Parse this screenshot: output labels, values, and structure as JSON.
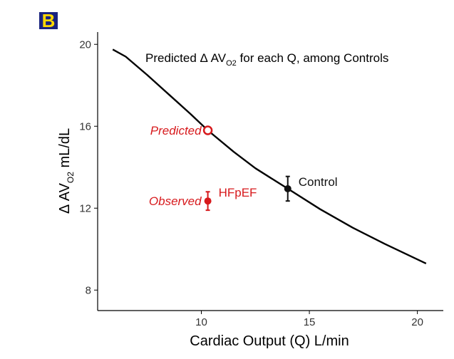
{
  "panel_label": "B",
  "chart_data": {
    "type": "line",
    "title": "Predicted Δ AV for each Q, among Controls",
    "title_parts": {
      "prefix": "Predicted Δ AV",
      "sub": "O2",
      "suffix": " for each Q, among Controls"
    },
    "xlabel": "Cardiac Output (Q)  L/min",
    "ylabel_parts": {
      "prefix": "Δ AV",
      "sub": "O2",
      "suffix": "  mL/dL"
    },
    "xlim": [
      5.2,
      21.2
    ],
    "ylim": [
      7.0,
      20.6
    ],
    "xticks": [
      10,
      15,
      20
    ],
    "yticks": [
      8,
      12,
      16,
      20
    ],
    "grid": false,
    "series": [
      {
        "name": "Predicted curve (Controls)",
        "color": "#000000",
        "x": [
          5.9,
          6.5,
          7.5,
          8.5,
          9.5,
          10.3,
          11.5,
          12.5,
          14.0,
          15.5,
          17.0,
          18.5,
          20.4
        ],
        "y": [
          19.75,
          19.4,
          18.5,
          17.55,
          16.6,
          15.8,
          14.75,
          13.95,
          12.95,
          11.95,
          11.05,
          10.25,
          9.3
        ]
      }
    ],
    "points": [
      {
        "name": "Predicted",
        "label": "Predicted",
        "x": 10.3,
        "y": 15.8,
        "color": "#d7191c",
        "style": "open",
        "label_side": "left",
        "italic": true
      },
      {
        "name": "Observed HFpEF",
        "label": "Observed",
        "label2": "HFpEF",
        "x": 10.3,
        "y": 12.35,
        "yerr": [
          11.9,
          12.8
        ],
        "color": "#d7191c",
        "style": "filled",
        "label_side": "left",
        "italic": true
      },
      {
        "name": "Control",
        "label": "Control",
        "x": 14.0,
        "y": 12.95,
        "yerr": [
          12.35,
          13.55
        ],
        "color": "#111111",
        "style": "filled",
        "label_side": "right",
        "italic": false
      }
    ]
  }
}
